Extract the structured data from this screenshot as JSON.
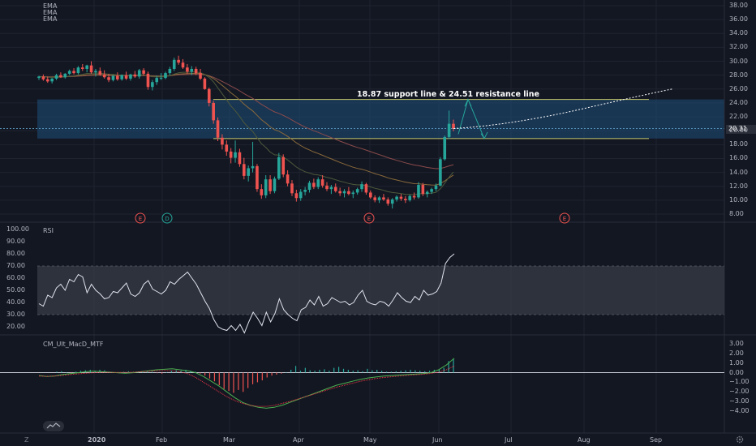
{
  "main_pane": {
    "indicators": [
      "EMA",
      "EMA",
      "EMA"
    ],
    "annotation": "18.87 support line & 24.51 resistance line",
    "last_price": "20.31",
    "price_ticks": [
      "38.00",
      "36.00",
      "34.00",
      "32.00",
      "30.00",
      "28.00",
      "26.00",
      "24.00",
      "22.00",
      "20.00",
      "18.00",
      "16.00",
      "14.00",
      "12.00",
      "10.00",
      "8.00"
    ],
    "events": [
      "E",
      "D",
      "E",
      "E"
    ]
  },
  "rsi_pane": {
    "title": "RSI",
    "ticks": [
      "100.00",
      "90.00",
      "80.00",
      "70.00",
      "60.00",
      "50.00",
      "40.00",
      "30.00",
      "20.00"
    ]
  },
  "macd_pane": {
    "title": "CM_Ult_MacD_MTF",
    "ticks": [
      "3.00",
      "2.00",
      "1.00",
      "0.00",
      "−1.00",
      "−2.00",
      "−3.00",
      "−4.00"
    ]
  },
  "time_axis": {
    "labels": [
      "2020",
      "Feb",
      "Mar",
      "Apr",
      "May",
      "Jun",
      "Jul",
      "Aug",
      "Sep"
    ]
  },
  "bottom_bar": {
    "left_icon": "Z",
    "right_icon": "gear-icon"
  },
  "colors": {
    "background": "#131722",
    "up": "#26a69a",
    "down": "#ef5350",
    "support_zone": "#1e4f7a",
    "support_line": "#c9c96b",
    "rsi_band": "#363a45",
    "rsi_line": "#e0e3eb",
    "macd_line": "#4caf50",
    "signal_line": "#f23645",
    "annotation": "#ffffff",
    "price_badge": "#2a2e39"
  },
  "chart_data": {
    "type": "candlestick",
    "x_range": [
      "2020-01",
      "2020-09"
    ],
    "y_range": [
      7,
      38.5
    ],
    "support": 18.87,
    "resistance": 24.51,
    "last_price": 20.31,
    "candles": [
      [
        27.6,
        27.9,
        27.3,
        27.8
      ],
      [
        27.8,
        28.1,
        27.2,
        27.4
      ],
      [
        27.4,
        27.8,
        26.9,
        27.1
      ],
      [
        27.1,
        27.6,
        26.8,
        27.5
      ],
      [
        27.5,
        28.2,
        27.3,
        28.0
      ],
      [
        28.0,
        28.4,
        27.6,
        27.7
      ],
      [
        27.7,
        28.3,
        27.5,
        28.2
      ],
      [
        28.2,
        28.8,
        28.0,
        28.6
      ],
      [
        28.6,
        29.0,
        28.1,
        28.3
      ],
      [
        28.3,
        29.3,
        28.1,
        29.1
      ],
      [
        29.1,
        29.6,
        28.6,
        28.9
      ],
      [
        28.9,
        29.5,
        28.4,
        29.4
      ],
      [
        29.4,
        30.0,
        28.2,
        28.4
      ],
      [
        28.4,
        28.9,
        27.8,
        28.6
      ],
      [
        28.6,
        29.1,
        27.9,
        28.1
      ],
      [
        28.1,
        28.7,
        27.5,
        27.7
      ],
      [
        27.7,
        28.2,
        27.0,
        27.3
      ],
      [
        27.3,
        28.0,
        27.1,
        27.9
      ],
      [
        27.9,
        28.4,
        27.2,
        27.4
      ],
      [
        27.4,
        28.1,
        27.2,
        28.0
      ],
      [
        28.0,
        28.5,
        27.3,
        27.5
      ],
      [
        27.5,
        28.2,
        27.2,
        28.1
      ],
      [
        28.1,
        28.6,
        27.6,
        27.8
      ],
      [
        27.8,
        28.9,
        27.5,
        28.7
      ],
      [
        28.7,
        29.0,
        27.9,
        28.2
      ],
      [
        28.2,
        28.5,
        25.9,
        26.3
      ],
      [
        26.3,
        27.3,
        25.8,
        27.0
      ],
      [
        27.0,
        27.9,
        26.6,
        27.6
      ],
      [
        27.6,
        28.3,
        27.3,
        27.6
      ],
      [
        27.6,
        28.5,
        27.4,
        28.3
      ],
      [
        28.3,
        29.2,
        28.0,
        28.9
      ],
      [
        28.9,
        30.5,
        28.6,
        30.2
      ],
      [
        30.2,
        30.8,
        29.5,
        29.8
      ],
      [
        29.8,
        30.3,
        28.9,
        29.1
      ],
      [
        29.1,
        29.6,
        28.2,
        28.5
      ],
      [
        28.5,
        29.3,
        28.0,
        28.9
      ],
      [
        28.9,
        29.2,
        28.0,
        28.3
      ],
      [
        28.3,
        28.9,
        27.3,
        27.5
      ],
      [
        27.5,
        27.7,
        25.9,
        26.0
      ],
      [
        26.0,
        26.2,
        23.5,
        24.0
      ],
      [
        24.0,
        24.3,
        21.0,
        21.5
      ],
      [
        21.5,
        21.9,
        18.5,
        19.0
      ],
      [
        19.0,
        19.5,
        17.3,
        18.0
      ],
      [
        18.0,
        18.6,
        16.4,
        17.0
      ],
      [
        17.0,
        17.5,
        15.3,
        16.1
      ],
      [
        16.1,
        18.6,
        15.4,
        16.9
      ],
      [
        16.9,
        17.4,
        14.8,
        15.2
      ],
      [
        15.2,
        16.1,
        13.0,
        13.5
      ],
      [
        13.5,
        15.0,
        12.7,
        14.6
      ],
      [
        14.6,
        18.4,
        14.0,
        14.9
      ],
      [
        14.9,
        15.2,
        11.2,
        11.6
      ],
      [
        11.6,
        12.3,
        10.2,
        10.7
      ],
      [
        10.7,
        13.6,
        10.3,
        13.0
      ],
      [
        13.0,
        13.6,
        10.9,
        11.3
      ],
      [
        11.3,
        13.4,
        11.0,
        13.1
      ],
      [
        13.1,
        16.8,
        12.9,
        16.2
      ],
      [
        16.2,
        16.6,
        13.3,
        13.7
      ],
      [
        13.7,
        14.3,
        12.0,
        12.4
      ],
      [
        12.4,
        12.9,
        10.6,
        11.0
      ],
      [
        11.0,
        11.5,
        9.8,
        10.3
      ],
      [
        10.3,
        11.6,
        9.9,
        11.2
      ],
      [
        11.2,
        11.9,
        10.7,
        11.5
      ],
      [
        11.5,
        12.8,
        11.1,
        12.5
      ],
      [
        12.5,
        13.1,
        11.6,
        11.9
      ],
      [
        11.9,
        13.3,
        11.6,
        13.0
      ],
      [
        13.0,
        13.6,
        11.8,
        12.1
      ],
      [
        12.1,
        12.6,
        11.3,
        11.6
      ],
      [
        11.6,
        12.2,
        10.9,
        11.9
      ],
      [
        11.9,
        12.4,
        11.1,
        11.3
      ],
      [
        11.3,
        11.8,
        10.6,
        11.0
      ],
      [
        11.0,
        11.6,
        10.4,
        11.3
      ],
      [
        11.3,
        11.9,
        10.7,
        10.9
      ],
      [
        10.9,
        11.4,
        10.3,
        11.1
      ],
      [
        11.1,
        11.8,
        10.8,
        11.6
      ],
      [
        11.6,
        12.7,
        11.2,
        12.3
      ],
      [
        12.3,
        12.5,
        10.8,
        11.1
      ],
      [
        11.1,
        11.4,
        10.2,
        10.4
      ],
      [
        10.4,
        10.7,
        9.7,
        10.0
      ],
      [
        10.0,
        10.6,
        9.6,
        10.4
      ],
      [
        10.4,
        10.9,
        9.9,
        10.1
      ],
      [
        10.1,
        10.4,
        9.2,
        9.5
      ],
      [
        9.5,
        10.3,
        8.8,
        10.1
      ],
      [
        10.1,
        10.7,
        9.8,
        10.5
      ],
      [
        10.5,
        10.9,
        9.9,
        10.2
      ],
      [
        10.2,
        10.6,
        9.6,
        10.0
      ],
      [
        10.0,
        10.8,
        9.8,
        10.6
      ],
      [
        10.6,
        11.1,
        10.1,
        10.4
      ],
      [
        10.4,
        12.6,
        10.2,
        12.2
      ],
      [
        12.2,
        12.5,
        10.6,
        10.9
      ],
      [
        10.9,
        11.4,
        10.4,
        11.2
      ],
      [
        11.2,
        11.8,
        10.9,
        11.6
      ],
      [
        11.6,
        12.4,
        11.3,
        12.1
      ],
      [
        12.1,
        16.2,
        12.0,
        15.9
      ],
      [
        15.9,
        19.3,
        15.7,
        19.1
      ],
      [
        19.1,
        22.9,
        18.8,
        21.0
      ],
      [
        21.0,
        21.6,
        19.9,
        20.31
      ]
    ],
    "projection_path": [
      [
        20.31,
        "Jun"
      ],
      [
        24.51,
        "Jun"
      ],
      [
        18.87,
        "Jun"
      ],
      [
        20.5,
        "Jul"
      ],
      [
        22.5,
        "Aug"
      ],
      [
        26.0,
        "Sep"
      ]
    ],
    "rsi": [
      39,
      37,
      46,
      44,
      52,
      55,
      50,
      59,
      57,
      63,
      61,
      48,
      55,
      50,
      47,
      43,
      44,
      49,
      48,
      52,
      56,
      47,
      45,
      48,
      55,
      58,
      51,
      49,
      47,
      50,
      57,
      55,
      59,
      62,
      65,
      60,
      55,
      48,
      41,
      35,
      26,
      20,
      18,
      17,
      21,
      17,
      22,
      15,
      24,
      32,
      27,
      21,
      32,
      24,
      31,
      43,
      34,
      30,
      27,
      25,
      34,
      36,
      42,
      38,
      45,
      37,
      39,
      44,
      42,
      40,
      41,
      38,
      40,
      46,
      50,
      41,
      39,
      38,
      41,
      40,
      37,
      42,
      48,
      44,
      41,
      40,
      45,
      42,
      50,
      46,
      47,
      49,
      56,
      72,
      77,
      80
    ],
    "macd_hist": [
      0.1,
      0.15,
      0.05,
      -0.05,
      0.1,
      0.2,
      0.25,
      0.3,
      0.2,
      0.3,
      0.25,
      0.1,
      0.05,
      -0.05,
      0.1,
      0.15,
      0.1,
      0.05,
      0.15,
      0.2,
      0.1,
      -0.05,
      -0.1,
      0.05,
      0.2,
      0.25,
      0.2,
      0.3,
      0.2,
      0.1,
      -0.1,
      -0.3,
      -0.6,
      -0.9,
      -1.3,
      -1.7,
      -1.9,
      -2.1,
      -1.8,
      -2.0,
      -1.6,
      -1.2,
      -1.0,
      -0.8,
      -0.5,
      -0.3,
      -0.2,
      -0.1,
      0.05,
      0.3,
      0.7,
      0.2,
      0.5,
      0.25,
      0.2,
      0.3,
      0.35,
      0.2,
      0.5,
      0.6,
      0.4,
      0.3,
      0.2,
      0.25,
      0.15,
      0.4,
      0.25,
      0.3,
      0.2,
      0.1,
      0.1,
      0.15,
      0.2,
      0.25,
      0.3,
      0.25,
      0.2,
      0.15,
      0.2,
      0.3,
      0.35,
      0.5,
      1.2,
      1.4
    ],
    "macd_line": [
      -0.3,
      -0.4,
      -0.35,
      -0.2,
      -0.1,
      0.0,
      0.1,
      0.15,
      0.1,
      0.05,
      0.0,
      -0.05,
      0.0,
      0.1,
      0.2,
      0.3,
      0.35,
      0.4,
      0.3,
      0.2,
      0.0,
      -0.4,
      -0.9,
      -1.4,
      -2.0,
      -2.6,
      -3.1,
      -3.4,
      -3.6,
      -3.7,
      -3.6,
      -3.4,
      -3.1,
      -2.8,
      -2.5,
      -2.2,
      -1.9,
      -1.6,
      -1.3,
      -1.1,
      -0.9,
      -0.7,
      -0.55,
      -0.45,
      -0.35,
      -0.3,
      -0.25,
      -0.2,
      -0.15,
      -0.1,
      0.0,
      0.3,
      0.8,
      1.5
    ],
    "signal_line": [
      -0.35,
      -0.38,
      -0.35,
      -0.28,
      -0.2,
      -0.12,
      -0.05,
      0.0,
      0.02,
      0.03,
      0.02,
      0.02,
      0.05,
      0.1,
      0.15,
      0.2,
      0.22,
      0.2,
      0.1,
      -0.1,
      -0.5,
      -1.0,
      -1.5,
      -2.0,
      -2.5,
      -2.9,
      -3.2,
      -3.4,
      -3.5,
      -3.5,
      -3.4,
      -3.2,
      -3.0,
      -2.75,
      -2.5,
      -2.25,
      -2.0,
      -1.75,
      -1.5,
      -1.3,
      -1.1,
      -0.9,
      -0.75,
      -0.6,
      -0.5,
      -0.42,
      -0.35,
      -0.28,
      -0.22,
      -0.16,
      -0.08,
      0.05,
      0.3,
      0.7
    ]
  }
}
